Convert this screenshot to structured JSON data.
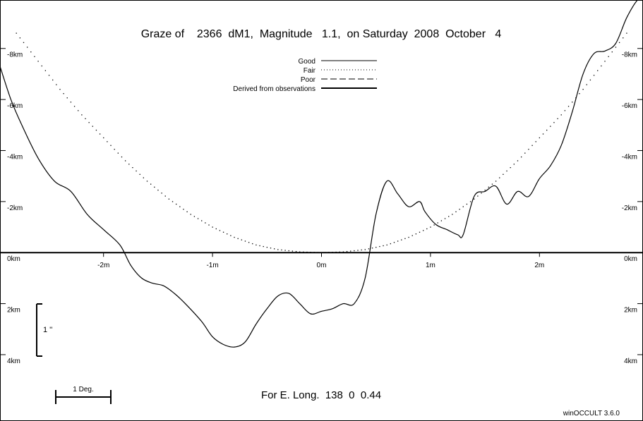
{
  "chart_data": {
    "type": "line",
    "title": "Graze of    2366  dM1,  Magnitude   1.1,  on Saturday  2008  October   4",
    "subtitle": "For E. Long.  138  0  0.44",
    "software": "winOCCULT 3.6.0",
    "legend": {
      "placement": "top-center",
      "entries": [
        {
          "label": "Good",
          "style": "solid"
        },
        {
          "label": "Fair",
          "style": "dotted"
        },
        {
          "label": "Poor",
          "style": "dashed"
        },
        {
          "label": "Derived from observations",
          "style": "thick"
        }
      ]
    },
    "x_ticks": [
      "-2m",
      "-1m",
      "0m",
      "1m",
      "2m"
    ],
    "y_ticks_left": [
      "-8km",
      "-6km",
      "-4km",
      "-2km",
      "0km",
      "2km",
      "4km"
    ],
    "y_ticks_right": [
      "-8km",
      "-6km",
      "-4km",
      "-2km",
      "0km",
      "2km",
      "4km"
    ],
    "xlim": [
      -2.95,
      2.95
    ],
    "ylim": [
      -9.9,
      6.6
    ],
    "scale_bar_time": "1 ''",
    "scale_bar_angle": "1 Deg.",
    "series": [
      {
        "style": "dotted",
        "x": [
          -2.8,
          -2.6,
          -2.4,
          -2.2,
          -2.0,
          -1.8,
          -1.6,
          -1.4,
          -1.2,
          -1.0,
          -0.8,
          -0.6,
          -0.4,
          -0.2,
          0.0,
          0.2,
          0.4,
          0.6,
          0.8,
          1.0,
          1.2,
          1.4,
          1.6,
          1.8,
          2.0,
          2.2,
          2.4,
          2.6,
          2.8
        ],
        "y": [
          -8.6,
          -7.5,
          -6.4,
          -5.4,
          -4.5,
          -3.6,
          -2.8,
          -2.1,
          -1.5,
          -1.0,
          -0.6,
          -0.3,
          -0.12,
          -0.03,
          0.0,
          -0.03,
          -0.12,
          -0.3,
          -0.6,
          -1.0,
          -1.5,
          -2.1,
          -2.8,
          -3.6,
          -4.5,
          -5.4,
          -6.4,
          -7.5,
          -8.6
        ]
      },
      {
        "style": "solid",
        "x": [
          -2.95,
          -2.85,
          -2.75,
          -2.6,
          -2.45,
          -2.3,
          -2.15,
          -2.0,
          -1.85,
          -1.75,
          -1.65,
          -1.55,
          -1.45,
          -1.35,
          -1.25,
          -1.1,
          -1.0,
          -0.9,
          -0.8,
          -0.7,
          -0.6,
          -0.5,
          -0.4,
          -0.3,
          -0.2,
          -0.1,
          0.0,
          0.1,
          0.2,
          0.3,
          0.4,
          0.5,
          0.6,
          0.7,
          0.8,
          0.9,
          0.95,
          1.05,
          1.15,
          1.25,
          1.3,
          1.4,
          1.5,
          1.6,
          1.7,
          1.8,
          1.9,
          2.0,
          2.1,
          2.2,
          2.3,
          2.4,
          2.5,
          2.6,
          2.7,
          2.8,
          2.9,
          2.95
        ],
        "y": [
          -7.3,
          -6.0,
          -5.0,
          -3.7,
          -2.8,
          -2.4,
          -1.5,
          -0.9,
          -0.3,
          0.5,
          1.0,
          1.2,
          1.3,
          1.6,
          2.0,
          2.7,
          3.3,
          3.6,
          3.7,
          3.5,
          2.8,
          2.2,
          1.7,
          1.6,
          2.0,
          2.4,
          2.3,
          2.2,
          2.0,
          2.0,
          1.0,
          -1.5,
          -2.8,
          -2.3,
          -1.8,
          -2.0,
          -1.6,
          -1.1,
          -0.9,
          -0.7,
          -0.7,
          -2.2,
          -2.4,
          -2.6,
          -1.9,
          -2.4,
          -2.2,
          -2.9,
          -3.4,
          -4.2,
          -5.5,
          -7.0,
          -7.8,
          -7.9,
          -8.2,
          -9.2,
          -9.9,
          -9.9
        ]
      }
    ]
  }
}
